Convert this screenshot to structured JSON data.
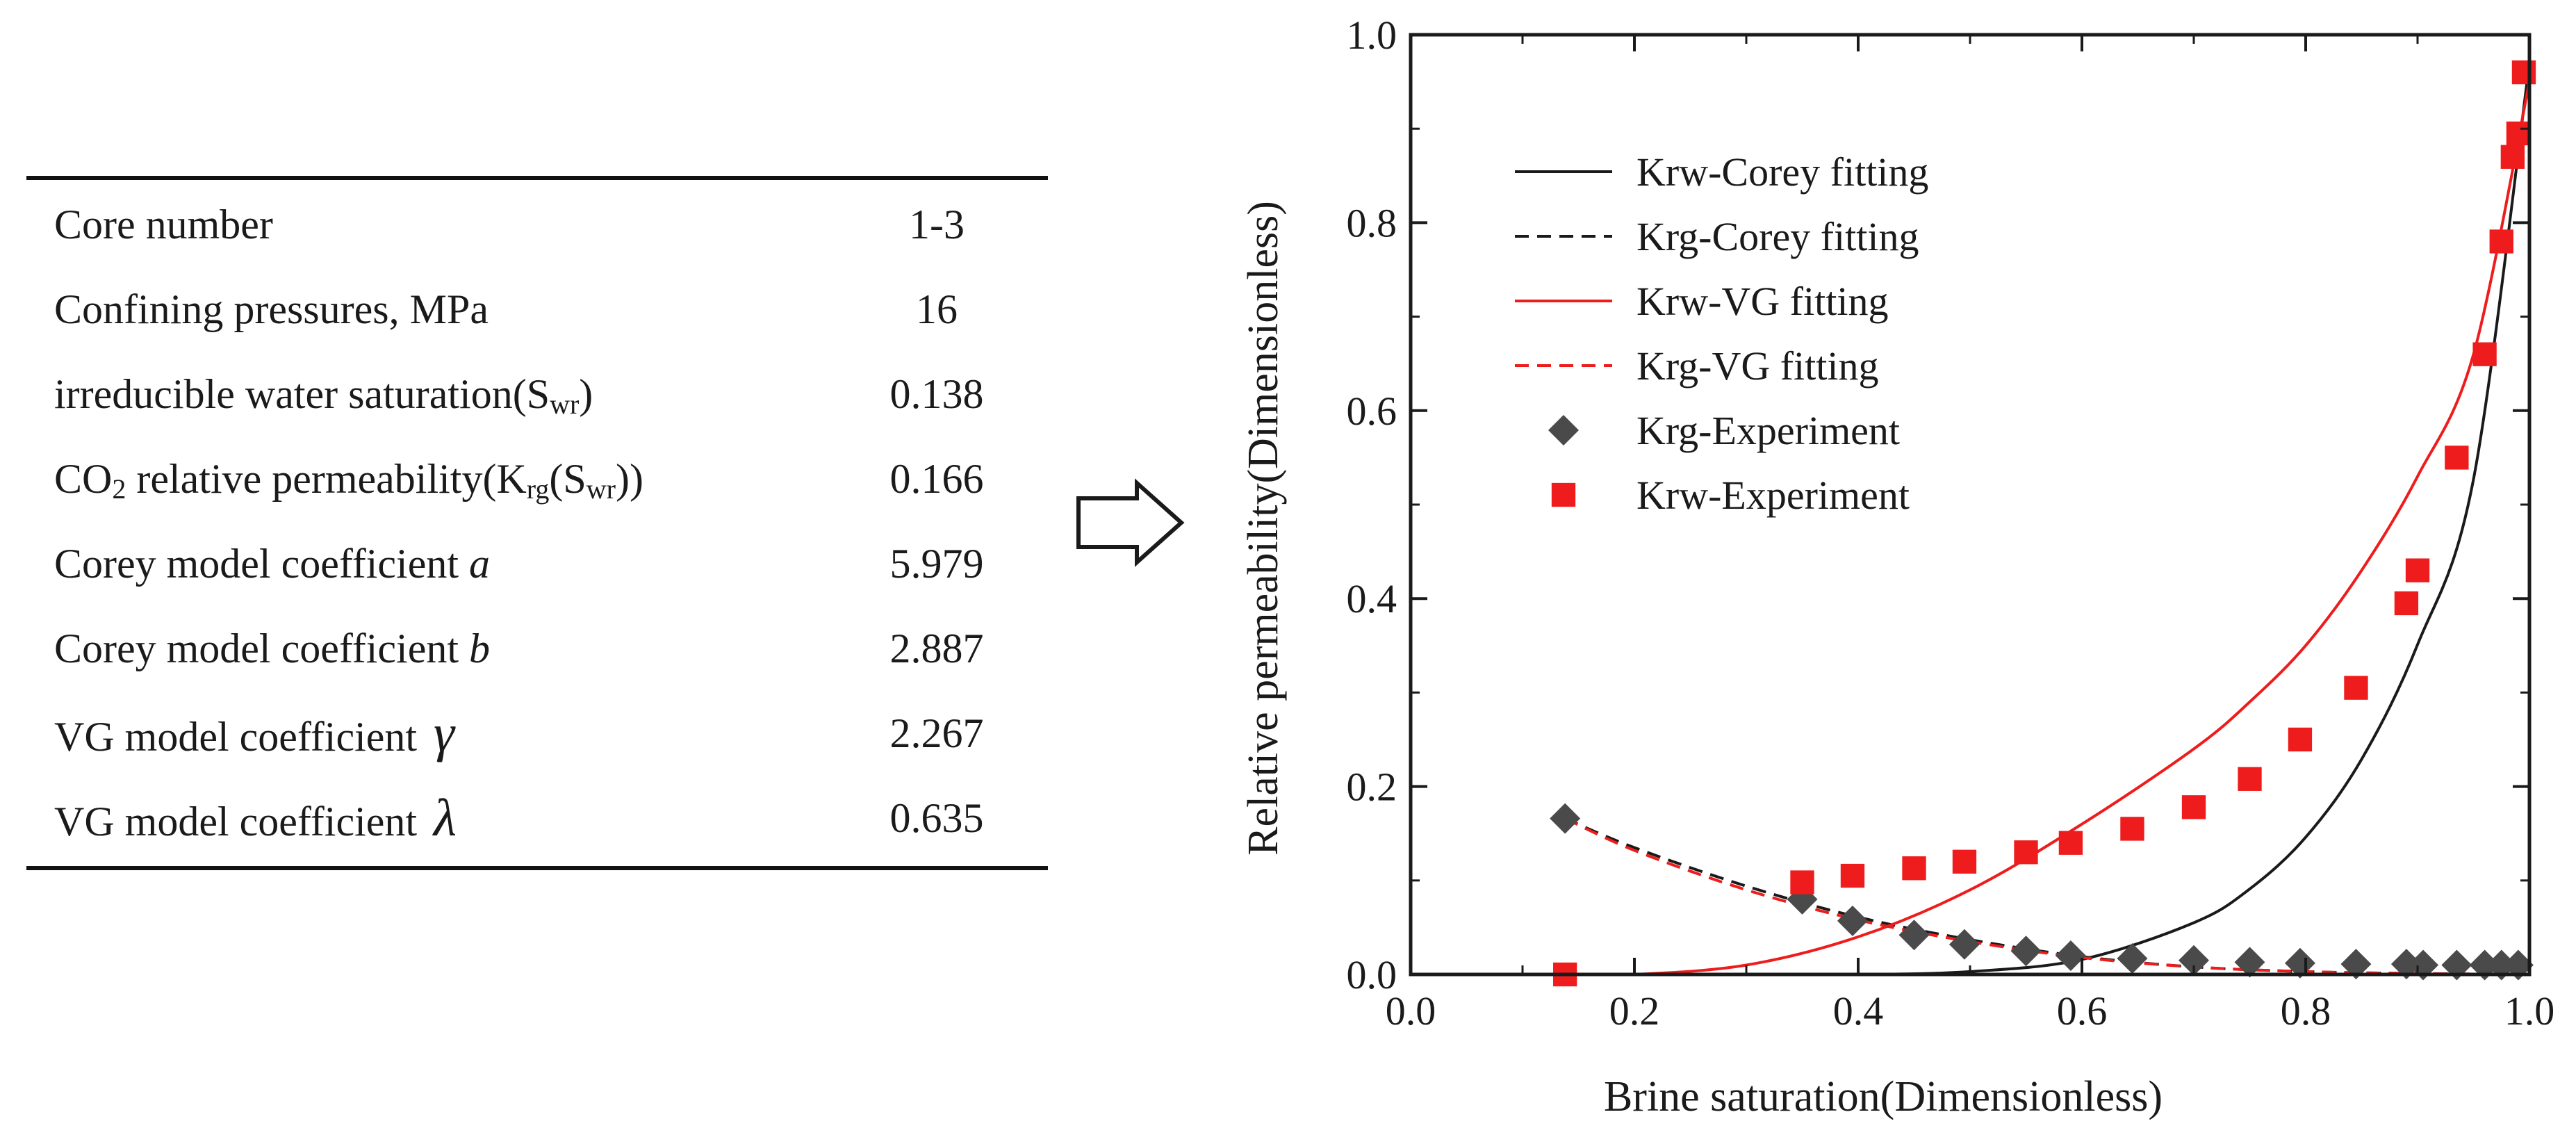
{
  "table": {
    "rows": [
      {
        "label": "Core number",
        "value": "1-3"
      },
      {
        "label": "Confining pressures, MPa",
        "value": "16"
      },
      {
        "label_prefix": "irreducible water saturation(S",
        "label_sub": "wr",
        "label_suffix": ")",
        "value": "0.138"
      },
      {
        "label_prefix": "CO",
        "label_sub": "2",
        "label_mid": " relative permeability(K",
        "label_sub2": "rg",
        "label_mid2": "(S",
        "label_sub3": "wr",
        "label_suffix": "))",
        "value": "0.166"
      },
      {
        "label": "Corey model coefficient ",
        "italic": "a",
        "value": "5.979"
      },
      {
        "label": "Corey model coefficient ",
        "italic": "b",
        "value": "2.887"
      },
      {
        "label": "VG model coefficient",
        "greek": "γ",
        "value": "2.267"
      },
      {
        "label": "VG model coefficient",
        "greek": "λ",
        "value": "0.635"
      }
    ]
  },
  "arrow_icon": "hollow-right-arrow",
  "chart_data": {
    "type": "line",
    "xlabel": "Brine saturation(Dimensionless)",
    "ylabel": "Relative permeability(Dimensionless)",
    "xlim": [
      0.0,
      1.0
    ],
    "ylim": [
      0.0,
      1.0
    ],
    "xticks": [
      "0.0",
      "0.2",
      "0.4",
      "0.6",
      "0.8",
      "1.0"
    ],
    "yticks": [
      "0.0",
      "0.2",
      "0.4",
      "0.6",
      "0.8",
      "1.0"
    ],
    "grid": false,
    "legend_position": "top-left",
    "series": [
      {
        "name": "Krw-Corey fitting",
        "kind": "line",
        "dash": "solid",
        "color": "#1a1a1a",
        "x": [
          0.138,
          0.2,
          0.3,
          0.4,
          0.5,
          0.6,
          0.7,
          0.75,
          0.8,
          0.85,
          0.9,
          0.95,
          1.0
        ],
        "y": [
          0.0,
          0.0,
          0.0,
          0.0,
          0.003,
          0.016,
          0.055,
          0.091,
          0.146,
          0.229,
          0.351,
          0.527,
          0.97
        ]
      },
      {
        "name": "Krg-Corey fitting",
        "kind": "line",
        "dash": "dashed",
        "color": "#1a1a1a",
        "x": [
          0.138,
          0.2,
          0.3,
          0.4,
          0.5,
          0.6,
          0.7,
          0.8,
          0.9,
          1.0
        ],
        "y": [
          0.166,
          0.135,
          0.094,
          0.061,
          0.037,
          0.019,
          0.008,
          0.003,
          0.001,
          0.0
        ]
      },
      {
        "name": "Krw-VG fitting",
        "kind": "line",
        "dash": "solid",
        "color": "#ee1c1c",
        "x": [
          0.138,
          0.2,
          0.3,
          0.4,
          0.5,
          0.6,
          0.7,
          0.75,
          0.8,
          0.85,
          0.9,
          0.95,
          1.0
        ],
        "y": [
          0.0,
          0.0,
          0.01,
          0.04,
          0.09,
          0.16,
          0.24,
          0.29,
          0.35,
          0.43,
          0.53,
          0.66,
          0.95
        ]
      },
      {
        "name": "Krg-VG fitting",
        "kind": "line",
        "dash": "dashed",
        "color": "#ee1c1c",
        "x": [
          0.138,
          0.2,
          0.3,
          0.4,
          0.5,
          0.6,
          0.7,
          0.8,
          0.9,
          1.0
        ],
        "y": [
          0.166,
          0.132,
          0.09,
          0.058,
          0.035,
          0.018,
          0.008,
          0.003,
          0.001,
          0.0
        ]
      },
      {
        "name": "Krg-Experiment",
        "kind": "marker",
        "marker": "diamond",
        "color": "#4a4a4a",
        "x": [
          0.138,
          0.35,
          0.395,
          0.45,
          0.495,
          0.55,
          0.59,
          0.645,
          0.7,
          0.75,
          0.795,
          0.845,
          0.89,
          0.905,
          0.935,
          0.96,
          0.975,
          0.99
        ],
        "y": [
          0.166,
          0.08,
          0.057,
          0.042,
          0.032,
          0.025,
          0.02,
          0.017,
          0.015,
          0.013,
          0.012,
          0.011,
          0.011,
          0.01,
          0.01,
          0.01,
          0.01,
          0.01
        ]
      },
      {
        "name": "Krw-Experiment",
        "kind": "marker",
        "marker": "square",
        "color": "#ee1c1c",
        "x": [
          0.138,
          0.35,
          0.395,
          0.45,
          0.495,
          0.55,
          0.59,
          0.645,
          0.7,
          0.75,
          0.795,
          0.845,
          0.89,
          0.9,
          0.935,
          0.96,
          0.975,
          0.985,
          0.99,
          0.995
        ],
        "y": [
          0.0,
          0.098,
          0.105,
          0.113,
          0.12,
          0.13,
          0.14,
          0.155,
          0.178,
          0.208,
          0.25,
          0.305,
          0.395,
          0.43,
          0.55,
          0.66,
          0.78,
          0.87,
          0.895,
          0.96
        ]
      }
    ]
  }
}
